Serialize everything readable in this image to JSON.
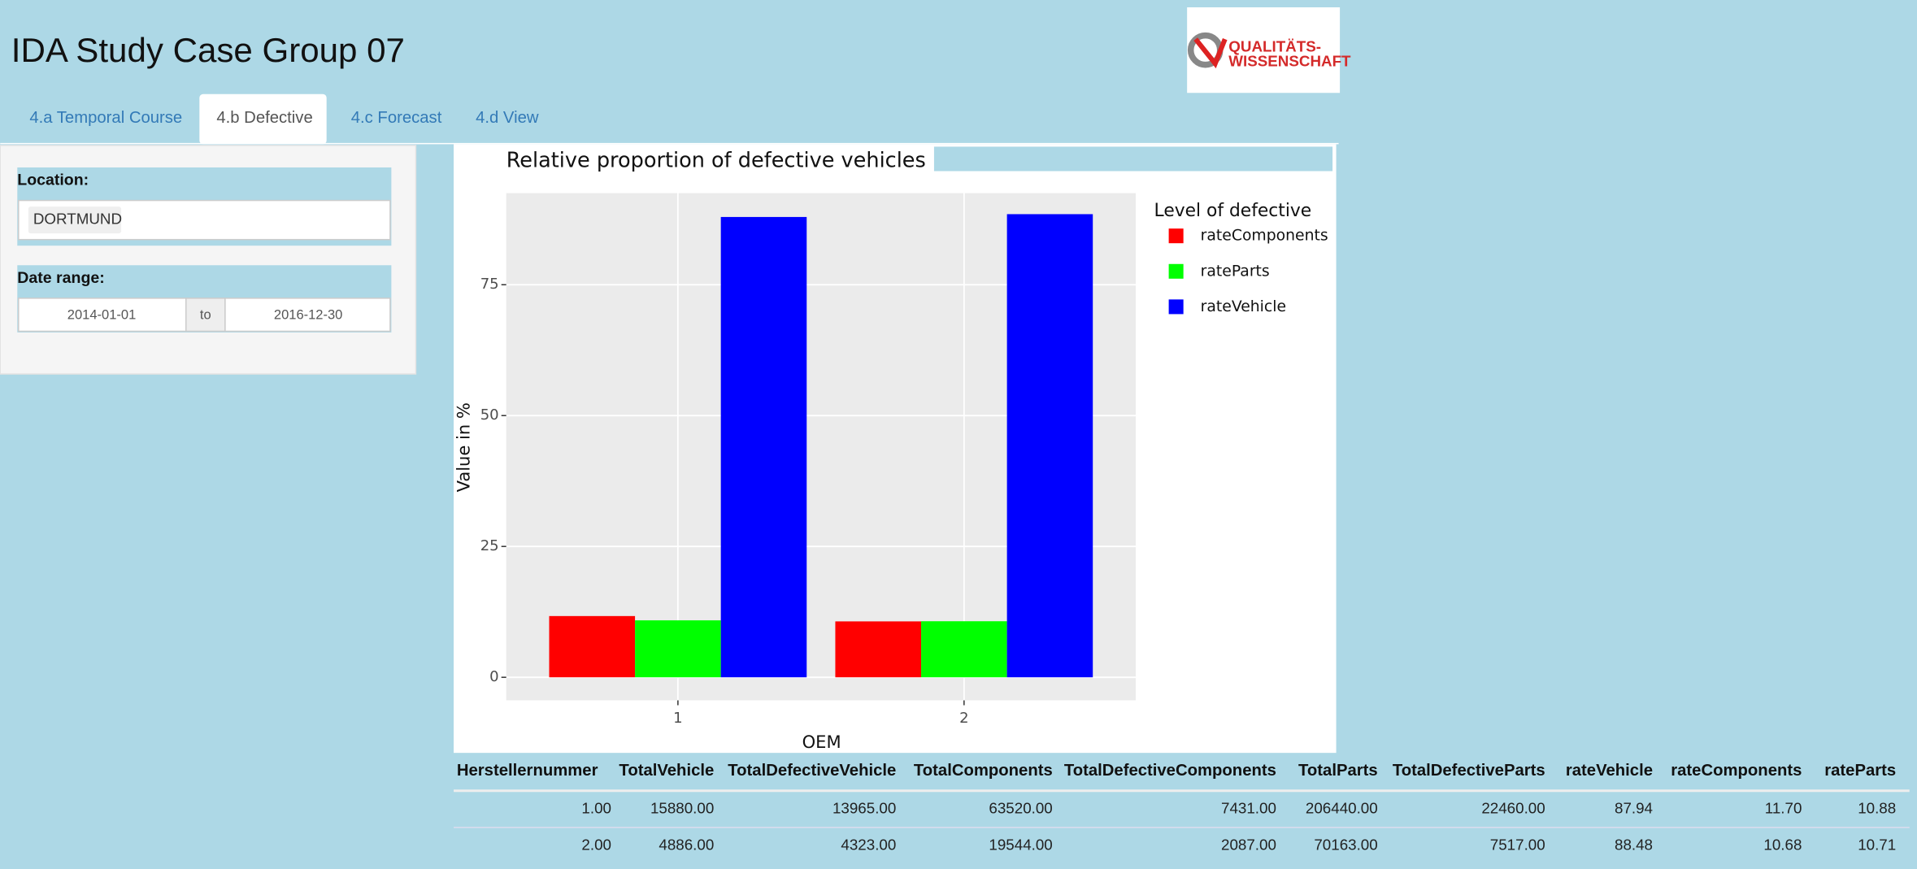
{
  "header": {
    "title": "IDA Study Case Group 07",
    "logo": [
      "QUALITÄTS-",
      "WISSENSCHAFT"
    ]
  },
  "tabs": [
    "4.a Temporal Course",
    "4.b Defective",
    "4.c Forecast",
    "4.d View"
  ],
  "sidebar": {
    "location_label": "Location:",
    "location": "DORTMUND",
    "date_label": "Date range:",
    "date_start": "2014-01-01",
    "date_sep": "to",
    "date_end": "2016-12-30"
  },
  "chart_data": {
    "type": "bar",
    "title": "Relative proportion of defective vehicles",
    "x_label": "OEM",
    "y_label": "Value in %",
    "legend_title": "Level of defective",
    "categories": [
      "1",
      "2"
    ],
    "series": [
      {
        "name": "rateComponents",
        "color": "#ff0000",
        "values": [
          11.7,
          10.68
        ]
      },
      {
        "name": "rateParts",
        "color": "#00ff00",
        "values": [
          10.88,
          10.71
        ]
      },
      {
        "name": "rateVehicle",
        "color": "#0000ff",
        "values": [
          87.94,
          88.48
        ]
      }
    ],
    "ylim": [
      -4.4,
      92.5
    ],
    "yticks": [
      0,
      25,
      50,
      75
    ],
    "grid": true,
    "legend": "right"
  },
  "table": {
    "columns": [
      "Herstellernummer",
      "TotalVehicle",
      "TotalDefectiveVehicle",
      "TotalComponents",
      "TotalDefectiveComponents",
      "TotalParts",
      "TotalDefectiveParts",
      "rateVehicle",
      "rateComponents",
      "rateParts"
    ],
    "rows": [
      [
        "1.00",
        "15880.00",
        "13965.00",
        "63520.00",
        "7431.00",
        "206440.00",
        "22460.00",
        "87.94",
        "11.70",
        "10.88"
      ],
      [
        "2.00",
        "4886.00",
        "4323.00",
        "19544.00",
        "2087.00",
        "70163.00",
        "7517.00",
        "88.48",
        "10.68",
        "10.71"
      ]
    ]
  }
}
